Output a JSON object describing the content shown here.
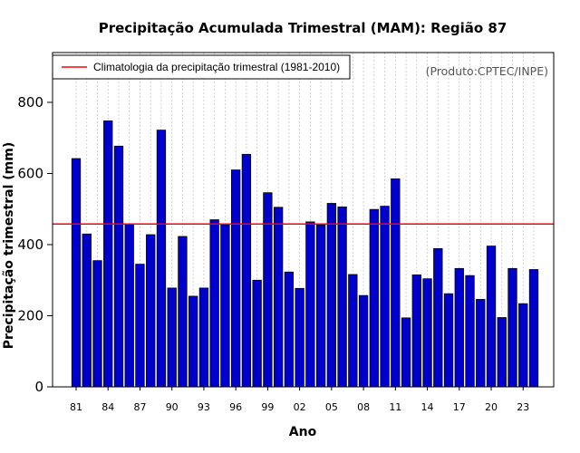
{
  "chart_data": {
    "type": "bar",
    "title": "Precipitação Acumulada Trimestral (MAM): Região 87",
    "xlabel": "Ano",
    "ylabel": "Precipitação trimestral (mm)",
    "categories": [
      "81",
      "82",
      "83",
      "84",
      "85",
      "86",
      "87",
      "88",
      "89",
      "90",
      "91",
      "92",
      "93",
      "94",
      "95",
      "96",
      "97",
      "98",
      "99",
      "00",
      "01",
      "02",
      "03",
      "04",
      "05",
      "06",
      "07",
      "08",
      "09",
      "10",
      "11",
      "12",
      "13",
      "14",
      "15",
      "16",
      "17",
      "18",
      "19",
      "20",
      "21",
      "22",
      "23",
      "24"
    ],
    "xtick_labels": [
      "81",
      "84",
      "87",
      "90",
      "93",
      "96",
      "99",
      "02",
      "05",
      "08",
      "11",
      "14",
      "17",
      "20",
      "23"
    ],
    "values": [
      642,
      430,
      355,
      748,
      677,
      458,
      345,
      428,
      722,
      278,
      423,
      255,
      278,
      470,
      456,
      610,
      654,
      300,
      546,
      505,
      323,
      277,
      464,
      455,
      516,
      506,
      316,
      257,
      499,
      508,
      585,
      194,
      315,
      304,
      389,
      262,
      333,
      313,
      246,
      396,
      195,
      333,
      234,
      330
    ],
    "ylim": [
      0,
      940
    ],
    "yticks": [
      0,
      200,
      400,
      600,
      800
    ],
    "climatology": 458,
    "bar_color": "#0000cd",
    "line_color": "#ff0000",
    "grid": true,
    "legend": {
      "label": "Climatologia da precipitação trimestral (1981-2010)",
      "position": "top-left"
    },
    "credit": "(Produto:CPTEC/INPE)"
  }
}
